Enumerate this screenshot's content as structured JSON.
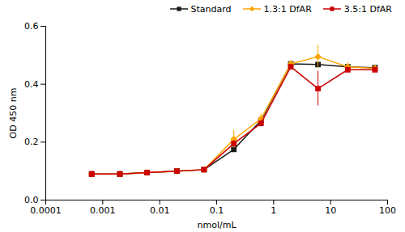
{
  "chart_data": {
    "type": "line",
    "x": [
      0.00064,
      0.002,
      0.006,
      0.02,
      0.06,
      0.2,
      0.6,
      2.0,
      6.0,
      20.0,
      60.0
    ],
    "series": [
      {
        "name": "Standard",
        "color": "#1a1a1a",
        "marker": "square",
        "values": [
          0.09,
          0.09,
          0.095,
          0.1,
          0.105,
          0.175,
          0.275,
          0.47,
          0.468,
          0.46,
          0.457
        ],
        "errors": [
          0.003,
          0.002,
          0.002,
          0.003,
          0.003,
          0.007,
          0.008,
          0.008,
          0.006,
          0.006,
          0.004
        ]
      },
      {
        "name": "1.3:1 DfAR",
        "color": "#FFA500",
        "marker": "diamond",
        "values": [
          0.09,
          0.09,
          0.095,
          0.1,
          0.105,
          0.21,
          0.28,
          0.47,
          0.495,
          0.46,
          0.455
        ],
        "errors": [
          0.003,
          0.002,
          0.002,
          0.004,
          0.003,
          0.03,
          0.018,
          0.012,
          0.04,
          0.015,
          0.006
        ]
      },
      {
        "name": "3.5:1 DfAR",
        "color": "#CC0000",
        "marker": "square",
        "values": [
          0.09,
          0.09,
          0.095,
          0.1,
          0.105,
          0.195,
          0.265,
          0.46,
          0.385,
          0.45,
          0.45
        ],
        "errors": [
          0.003,
          0.002,
          0.002,
          0.003,
          0.003,
          0.01,
          0.012,
          0.01,
          0.06,
          0.008,
          0.005
        ]
      }
    ],
    "xlabel": "nmol/mL",
    "ylabel": "OD 450 nm",
    "xlim": [
      0.0001,
      100
    ],
    "ylim": [
      0.0,
      0.6
    ],
    "xticks": [
      0.0001,
      0.001,
      0.01,
      0.1,
      1,
      10,
      100
    ],
    "yticks": [
      {
        "value": 0,
        "label": "0.0"
      },
      0.2,
      0.4,
      0.6
    ],
    "log": "x",
    "legend": "upper right",
    "grid": false
  }
}
